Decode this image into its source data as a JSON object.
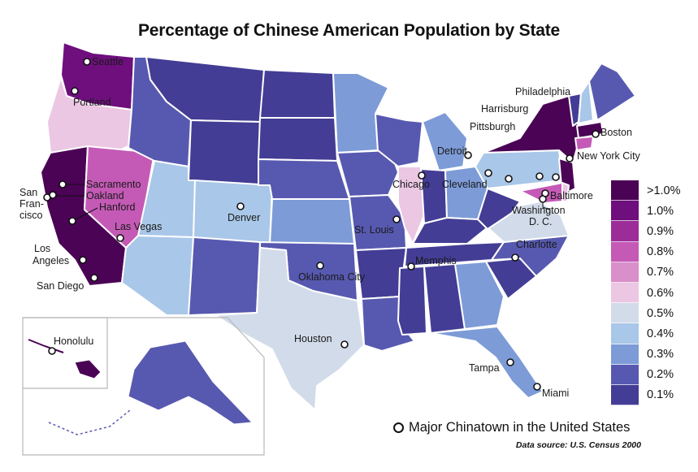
{
  "title": "Percentage of Chinese American Population by State",
  "colors": {
    "gt1": "#4b0355",
    "p10": "#6e0f7d",
    "p09": "#9c2d98",
    "p08": "#c45ab6",
    "p07": "#d98fca",
    "p06": "#ebc7e3",
    "p05": "#d2dbe9",
    "p04": "#a9c7e8",
    "p03": "#7d9bd7",
    "p02": "#5759b0",
    "p01": "#433d95"
  },
  "legend": [
    {
      "label": ">1.0%",
      "color": "#4b0355"
    },
    {
      "label": "1.0%",
      "color": "#6e0f7d"
    },
    {
      "label": "0.9%",
      "color": "#9c2d98"
    },
    {
      "label": "0.8%",
      "color": "#c45ab6"
    },
    {
      "label": "0.7%",
      "color": "#d98fca"
    },
    {
      "label": "0.6%",
      "color": "#ebc7e3"
    },
    {
      "label": "0.5%",
      "color": "#d2dbe9"
    },
    {
      "label": "0.4%",
      "color": "#a9c7e8"
    },
    {
      "label": "0.3%",
      "color": "#7d9bd7"
    },
    {
      "label": "0.2%",
      "color": "#5759b0"
    },
    {
      "label": "0.1%",
      "color": "#433d95"
    }
  ],
  "chinatown_legend": "Major Chinatown in the United States",
  "data_source": "Data source: U.S. Census 2000",
  "cities": {
    "seattle": "Seattle",
    "portland": "Portland",
    "san_fran_1": "San",
    "san_fran_2": "Fran-",
    "san_fran_3": "cisco",
    "sacramento": "Sacramento",
    "oakland": "Oakland",
    "hanford": "Hanford",
    "las_vegas": "Las Vegas",
    "los_angeles_1": "Los",
    "los_angeles_2": "Angeles",
    "san_diego": "San Diego",
    "denver": "Denver",
    "oklahoma_city": "Oklahoma City",
    "houston": "Houston",
    "st_louis": "St. Louis",
    "chicago": "Chicago",
    "memphis": "Memphis",
    "detroit": "Detroit",
    "cleveland": "Cleveland",
    "pittsburgh": "Pittsburgh",
    "harrisburg": "Harrisburg",
    "philadelphia": "Philadelphia",
    "boston": "Boston",
    "new_york": "New York City",
    "baltimore": "Baltimore",
    "washington_1": "Washington",
    "washington_2": "D. C.",
    "charlotte": "Charlotte",
    "tampa": "Tampa",
    "miami": "Miami",
    "honolulu": "Honolulu"
  }
}
